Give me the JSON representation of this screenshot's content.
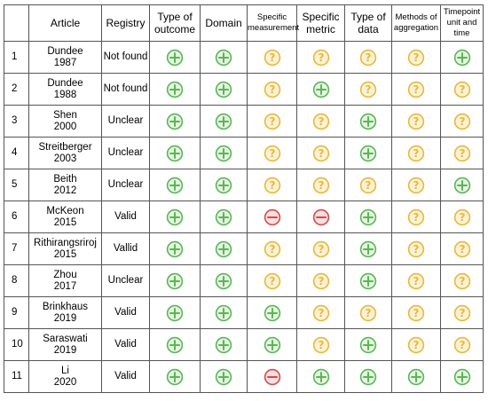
{
  "colors": {
    "yes": "#58b754",
    "yes_fill": "#e8f4e2",
    "unclear": "#e9b73b",
    "unclear_fill": "#fdf2d4",
    "no": "#d64b4b",
    "no_fill": "#f8dede",
    "border": "#555555"
  },
  "icon_names": {
    "yes": "plus-icon",
    "unclear": "question-icon",
    "no": "minus-icon"
  },
  "table": {
    "headers": [
      {
        "text": "",
        "cls": ""
      },
      {
        "text": "Article",
        "cls": "art"
      },
      {
        "text": "Registry",
        "cls": "main"
      },
      {
        "text": "Type of\noutcome",
        "cls": "main"
      },
      {
        "text": "Domain",
        "cls": "main"
      },
      {
        "text": "Specific\nmeasurement",
        "cls": "small"
      },
      {
        "text": "Specific\nmetric",
        "cls": "main"
      },
      {
        "text": "Type of\ndata",
        "cls": "main"
      },
      {
        "text": "Methods of\naggregation",
        "cls": "small"
      },
      {
        "text": "Timepoint\nunit and time",
        "cls": "small"
      }
    ],
    "rows": [
      {
        "num": "1",
        "article": "Dundee\n1987",
        "registry": "Not found",
        "marks": [
          "yes",
          "yes",
          "unclear",
          "unclear",
          "unclear",
          "unclear",
          "yes"
        ]
      },
      {
        "num": "2",
        "article": "Dundee\n1988",
        "registry": "Not found",
        "marks": [
          "yes",
          "yes",
          "unclear",
          "yes",
          "unclear",
          "unclear",
          "unclear"
        ]
      },
      {
        "num": "3",
        "article": "Shen\n2000",
        "registry": "Unclear",
        "marks": [
          "yes",
          "yes",
          "unclear",
          "unclear",
          "yes",
          "unclear",
          "unclear"
        ]
      },
      {
        "num": "4",
        "article": "Streitberger\n2003",
        "registry": "Unclear",
        "marks": [
          "yes",
          "yes",
          "unclear",
          "unclear",
          "yes",
          "unclear",
          "unclear"
        ]
      },
      {
        "num": "5",
        "article": "Beith\n2012",
        "registry": "Unclear",
        "marks": [
          "yes",
          "yes",
          "unclear",
          "unclear",
          "unclear",
          "unclear",
          "yes"
        ]
      },
      {
        "num": "6",
        "article": "McKeon\n2015",
        "registry": "Valid",
        "marks": [
          "yes",
          "yes",
          "no",
          "no",
          "yes",
          "unclear",
          "unclear"
        ]
      },
      {
        "num": "7",
        "article": "Rithirangsriroj\n2015",
        "registry": "Vallid",
        "marks": [
          "yes",
          "yes",
          "unclear",
          "unclear",
          "yes",
          "unclear",
          "unclear"
        ]
      },
      {
        "num": "8",
        "article": "Zhou\n2017",
        "registry": "Unclear",
        "marks": [
          "yes",
          "yes",
          "unclear",
          "unclear",
          "yes",
          "unclear",
          "unclear"
        ]
      },
      {
        "num": "9",
        "article": "Brinkhaus\n2019",
        "registry": "Valid",
        "marks": [
          "yes",
          "yes",
          "yes",
          "unclear",
          "unclear",
          "unclear",
          "unclear"
        ]
      },
      {
        "num": "10",
        "article": "Saraswati\n2019",
        "registry": "Valid",
        "marks": [
          "yes",
          "yes",
          "yes",
          "unclear",
          "yes",
          "unclear",
          "unclear"
        ]
      },
      {
        "num": "11",
        "article": "Li\n2020",
        "registry": "Valid",
        "marks": [
          "yes",
          "yes",
          "no",
          "yes",
          "yes",
          "yes",
          "yes"
        ]
      }
    ]
  }
}
